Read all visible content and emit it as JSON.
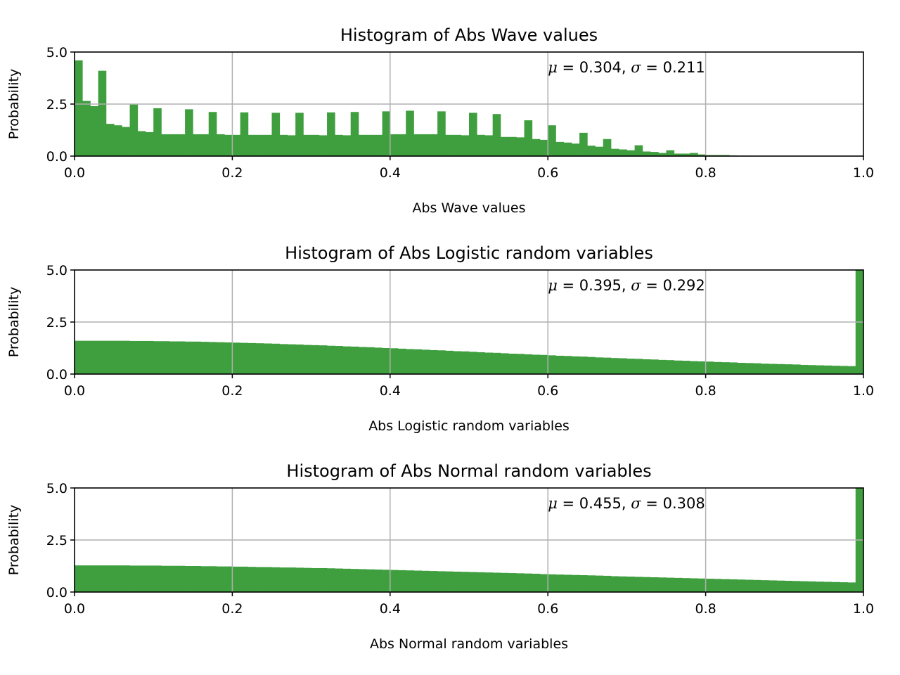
{
  "chart_data": [
    {
      "type": "bar",
      "title": "Histogram of Abs Wave values",
      "xlabel": "Abs Wave values",
      "ylabel": "Probability",
      "xlim": [
        0.0,
        1.0
      ],
      "ylim": [
        0.0,
        5.0
      ],
      "xticks": [
        "0.0",
        "0.2",
        "0.4",
        "0.6",
        "0.8",
        "1.0"
      ],
      "yticks": [
        "0.0",
        "2.5",
        "5.0"
      ],
      "grid": true,
      "color": "#3f9f3f",
      "annotation": {
        "mu": "0.304",
        "sigma": "0.211"
      },
      "bin_width": 0.01,
      "values": [
        4.6,
        2.65,
        2.4,
        4.1,
        1.55,
        1.48,
        1.4,
        2.48,
        1.2,
        1.15,
        2.3,
        1.05,
        1.05,
        1.05,
        2.25,
        1.05,
        1.05,
        2.12,
        1.05,
        1.02,
        1.02,
        2.1,
        1.02,
        1.02,
        1.02,
        2.08,
        1.02,
        1.0,
        2.08,
        1.02,
        1.02,
        1.0,
        2.1,
        1.02,
        1.0,
        2.12,
        1.02,
        1.02,
        1.02,
        2.15,
        1.05,
        1.05,
        2.18,
        1.05,
        1.05,
        1.05,
        2.15,
        1.02,
        1.02,
        1.0,
        2.08,
        1.02,
        1.0,
        2.02,
        0.92,
        0.92,
        0.9,
        1.72,
        0.82,
        0.78,
        1.48,
        0.68,
        0.65,
        0.6,
        1.12,
        0.5,
        0.45,
        0.82,
        0.35,
        0.32,
        0.28,
        0.52,
        0.22,
        0.2,
        0.15,
        0.28,
        0.12,
        0.12,
        0.15,
        0.08,
        0.05,
        0.05,
        0.05,
        0.03,
        0.02,
        0.02,
        0.01,
        0.01,
        0.0,
        0.0,
        0.0,
        0.0,
        0.0,
        0.0,
        0.0,
        0.0,
        0.0,
        0.0,
        0.0,
        0.0
      ]
    },
    {
      "type": "bar",
      "title": "Histogram of Abs Logistic random variables",
      "xlabel": "Abs Logistic random variables",
      "ylabel": "Probability",
      "xlim": [
        0.0,
        1.0
      ],
      "ylim": [
        0.0,
        5.0
      ],
      "xticks": [
        "0.0",
        "0.2",
        "0.4",
        "0.6",
        "0.8",
        "1.0"
      ],
      "yticks": [
        "0.0",
        "2.5",
        "5.0"
      ],
      "grid": true,
      "color": "#3f9f3f",
      "annotation": {
        "mu": "0.395",
        "sigma": "0.292"
      },
      "bin_width": 0.01,
      "values": [
        1.6,
        1.6,
        1.6,
        1.6,
        1.6,
        1.6,
        1.6,
        1.59,
        1.59,
        1.59,
        1.58,
        1.58,
        1.57,
        1.57,
        1.56,
        1.56,
        1.55,
        1.54,
        1.53,
        1.52,
        1.51,
        1.5,
        1.49,
        1.48,
        1.47,
        1.46,
        1.44,
        1.43,
        1.42,
        1.4,
        1.39,
        1.38,
        1.36,
        1.35,
        1.33,
        1.32,
        1.3,
        1.29,
        1.27,
        1.25,
        1.24,
        1.22,
        1.2,
        1.19,
        1.17,
        1.15,
        1.14,
        1.12,
        1.1,
        1.09,
        1.07,
        1.05,
        1.03,
        1.02,
        1.0,
        0.98,
        0.97,
        0.95,
        0.93,
        0.92,
        0.9,
        0.88,
        0.87,
        0.85,
        0.84,
        0.82,
        0.8,
        0.79,
        0.77,
        0.76,
        0.74,
        0.73,
        0.71,
        0.7,
        0.68,
        0.67,
        0.65,
        0.64,
        0.62,
        0.61,
        0.6,
        0.58,
        0.57,
        0.56,
        0.54,
        0.53,
        0.52,
        0.5,
        0.49,
        0.48,
        0.47,
        0.46,
        0.44,
        0.43,
        0.42,
        0.41,
        0.4,
        0.39,
        0.38,
        5.0
      ]
    },
    {
      "type": "bar",
      "title": "Histogram of Abs Normal random variables",
      "xlabel": "Abs Normal random variables",
      "ylabel": "Probability",
      "xlim": [
        0.0,
        1.0
      ],
      "ylim": [
        0.0,
        5.0
      ],
      "xticks": [
        "0.0",
        "0.2",
        "0.4",
        "0.6",
        "0.8",
        "1.0"
      ],
      "yticks": [
        "0.0",
        "2.5",
        "5.0"
      ],
      "grid": true,
      "color": "#3f9f3f",
      "annotation": {
        "mu": "0.455",
        "sigma": "0.308"
      },
      "bin_width": 0.01,
      "values": [
        1.28,
        1.28,
        1.28,
        1.28,
        1.28,
        1.28,
        1.28,
        1.27,
        1.27,
        1.27,
        1.27,
        1.26,
        1.26,
        1.26,
        1.25,
        1.25,
        1.24,
        1.24,
        1.23,
        1.23,
        1.22,
        1.22,
        1.21,
        1.2,
        1.2,
        1.19,
        1.18,
        1.18,
        1.17,
        1.16,
        1.15,
        1.15,
        1.14,
        1.13,
        1.12,
        1.11,
        1.1,
        1.09,
        1.08,
        1.07,
        1.06,
        1.05,
        1.04,
        1.03,
        1.02,
        1.01,
        1.0,
        0.99,
        0.98,
        0.97,
        0.96,
        0.95,
        0.94,
        0.93,
        0.92,
        0.91,
        0.9,
        0.89,
        0.88,
        0.86,
        0.85,
        0.84,
        0.83,
        0.82,
        0.81,
        0.8,
        0.79,
        0.78,
        0.76,
        0.75,
        0.74,
        0.73,
        0.72,
        0.71,
        0.7,
        0.69,
        0.68,
        0.67,
        0.66,
        0.65,
        0.64,
        0.63,
        0.62,
        0.61,
        0.6,
        0.59,
        0.58,
        0.57,
        0.56,
        0.55,
        0.54,
        0.53,
        0.52,
        0.51,
        0.5,
        0.49,
        0.48,
        0.47,
        0.46,
        5.0
      ]
    }
  ]
}
